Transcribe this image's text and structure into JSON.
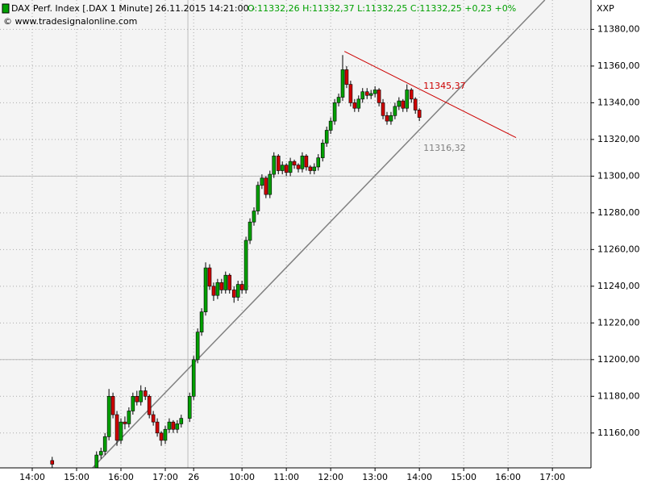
{
  "header": {
    "title": "DAX Perf. Index [.DAX  1 Minute] 26.11.2015 14:21:00 - ",
    "quote": "O:11332,26 H:11332,37 L:11332,25 C:11332,25 +0,23 +0%",
    "copyright": "© www.tradesignalonline.com",
    "symbol": "XXP"
  },
  "chart_data": {
    "type": "candlestick",
    "up_color": "#00a000",
    "down_color": "#d00000",
    "grid": true,
    "xlim": [
      -0.727,
      12.6
    ],
    "ylim": [
      11141,
      11396
    ],
    "xticks": [
      {
        "value": 0,
        "label": "14:00"
      },
      {
        "value": 1,
        "label": "15:00"
      },
      {
        "value": 2,
        "label": "16:00"
      },
      {
        "value": 3,
        "label": "17:00"
      },
      {
        "value": 3.64,
        "label": "26"
      },
      {
        "value": 4.73,
        "label": "10:00"
      },
      {
        "value": 5.73,
        "label": "11:00"
      },
      {
        "value": 6.73,
        "label": "12:00"
      },
      {
        "value": 7.73,
        "label": "13:00"
      },
      {
        "value": 8.73,
        "label": "14:00"
      },
      {
        "value": 9.73,
        "label": "15:00"
      },
      {
        "value": 10.73,
        "label": "16:00"
      },
      {
        "value": 11.73,
        "label": "17:00"
      }
    ],
    "yticks": [
      {
        "value": 11160,
        "label": "11160,00"
      },
      {
        "value": 11180,
        "label": "11180,00"
      },
      {
        "value": 11200,
        "label": "11200,00"
      },
      {
        "value": 11220,
        "label": "11220,00"
      },
      {
        "value": 11240,
        "label": "11240,00"
      },
      {
        "value": 11260,
        "label": "11260,00"
      },
      {
        "value": 11280,
        "label": "11280,00"
      },
      {
        "value": 11300,
        "label": "11300,00"
      },
      {
        "value": 11320,
        "label": "11320,00"
      },
      {
        "value": 11340,
        "label": "11340,00"
      },
      {
        "value": 11360,
        "label": "11360,00"
      },
      {
        "value": 11380,
        "label": "11380,00"
      }
    ],
    "hlines": [
      11200,
      11300
    ],
    "vlines": [
      3.51
    ],
    "x": [
      0.45,
      1.45,
      1.55,
      1.64,
      1.73,
      1.82,
      1.91,
      2.0,
      2.09,
      2.18,
      2.27,
      2.36,
      2.45,
      2.55,
      2.64,
      2.73,
      2.82,
      2.91,
      3.0,
      3.09,
      3.18,
      3.27,
      3.36,
      3.55,
      3.64,
      3.73,
      3.82,
      3.91,
      4.0,
      4.09,
      4.18,
      4.27,
      4.36,
      4.45,
      4.55,
      4.64,
      4.73,
      4.82,
      4.91,
      5.0,
      5.09,
      5.18,
      5.27,
      5.36,
      5.45,
      5.55,
      5.64,
      5.73,
      5.82,
      5.91,
      6.0,
      6.09,
      6.18,
      6.27,
      6.36,
      6.45,
      6.55,
      6.64,
      6.73,
      6.82,
      6.91,
      7.0,
      7.09,
      7.18,
      7.27,
      7.36,
      7.45,
      7.55,
      7.64,
      7.73,
      7.82,
      7.91,
      8.0,
      8.09,
      8.18,
      8.27,
      8.36,
      8.45,
      8.55,
      8.64,
      8.73
    ],
    "open": [
      11145,
      11141,
      11148,
      11150,
      11158,
      11180,
      11170,
      11156,
      11166,
      11165,
      11172,
      11180,
      11177,
      11183,
      11180,
      11170,
      11166,
      11160,
      11156,
      11162,
      11166,
      11162,
      11165,
      11168,
      11180,
      11200,
      11215,
      11226,
      11250,
      11240,
      11235,
      11242,
      11238,
      11246,
      11238,
      11234,
      11241,
      11238,
      11265,
      11275,
      11281,
      11295,
      11299,
      11290,
      11301,
      11311,
      11303,
      11306,
      11302,
      11308,
      11306,
      11304,
      11311,
      11305,
      11303,
      11305,
      11310,
      11318,
      11325,
      11330,
      11340,
      11343,
      11358,
      11350,
      11340,
      11337,
      11342,
      11346,
      11344,
      11345,
      11347,
      11340,
      11333,
      11330,
      11333,
      11338,
      11341,
      11337,
      11347,
      11342,
      11336
    ],
    "high": [
      11147,
      11150,
      11152,
      11160,
      11184,
      11182,
      11172,
      11168,
      11169,
      11174,
      11182,
      11183,
      11186,
      11185,
      11181,
      11172,
      11168,
      11161,
      11164,
      11168,
      11167,
      11167,
      11170,
      11182,
      11202,
      11217,
      11228,
      11253,
      11252,
      11242,
      11244,
      11244,
      11248,
      11247,
      11240,
      11243,
      11243,
      11267,
      11277,
      11283,
      11297,
      11301,
      11300,
      11303,
      11313,
      11312,
      11308,
      11307,
      11310,
      11309,
      11307,
      11313,
      11312,
      11306,
      11307,
      11312,
      11320,
      11327,
      11332,
      11342,
      11345,
      11366,
      11360,
      11352,
      11342,
      11344,
      11348,
      11348,
      11347,
      11349,
      11348,
      11342,
      11335,
      11335,
      11340,
      11343,
      11342,
      11350,
      11348,
      11343,
      11337
    ],
    "low": [
      11141,
      11141,
      11146,
      11148,
      11156,
      11168,
      11153,
      11154,
      11162,
      11163,
      11170,
      11175,
      11175,
      11178,
      11168,
      11164,
      11158,
      11153,
      11154,
      11160,
      11160,
      11160,
      11163,
      11166,
      11178,
      11198,
      11213,
      11224,
      11238,
      11232,
      11233,
      11236,
      11236,
      11236,
      11231,
      11232,
      11236,
      11236,
      11263,
      11273,
      11279,
      11293,
      11288,
      11288,
      11299,
      11301,
      11301,
      11300,
      11300,
      11304,
      11302,
      11302,
      11303,
      11301,
      11301,
      11303,
      11308,
      11316,
      11323,
      11328,
      11338,
      11341,
      11348,
      11338,
      11335,
      11335,
      11340,
      11342,
      11342,
      11343,
      11338,
      11331,
      11328,
      11328,
      11331,
      11336,
      11335,
      11335,
      11340,
      11334,
      11330
    ],
    "close": [
      11143,
      11148,
      11150,
      11158,
      11180,
      11170,
      11156,
      11166,
      11165,
      11172,
      11180,
      11177,
      11183,
      11180,
      11170,
      11166,
      11160,
      11156,
      11162,
      11166,
      11162,
      11165,
      11168,
      11180,
      11200,
      11215,
      11226,
      11250,
      11240,
      11235,
      11242,
      11238,
      11246,
      11238,
      11234,
      11241,
      11238,
      11265,
      11275,
      11281,
      11295,
      11299,
      11290,
      11301,
      11311,
      11303,
      11306,
      11302,
      11308,
      11306,
      11304,
      11311,
      11305,
      11303,
      11305,
      11310,
      11318,
      11325,
      11330,
      11340,
      11343,
      11358,
      11350,
      11340,
      11337,
      11342,
      11346,
      11344,
      11345,
      11347,
      11340,
      11333,
      11330,
      11333,
      11338,
      11341,
      11337,
      11347,
      11342,
      11336,
      11332
    ],
    "lines": [
      {
        "color": "#808080",
        "x": [
          1.36,
          11.56
        ],
        "y": [
          11141,
          11396
        ]
      },
      {
        "color": "#cc0000",
        "x": [
          7.04,
          10.91
        ],
        "y": [
          11368,
          11321
        ]
      }
    ],
    "annotations": [
      {
        "text": "11345,37",
        "color": "#cc0000",
        "x": 8.82,
        "y": 11349
      },
      {
        "text": "11316,32",
        "color": "#808080",
        "x": 8.82,
        "y": 11315
      }
    ]
  }
}
